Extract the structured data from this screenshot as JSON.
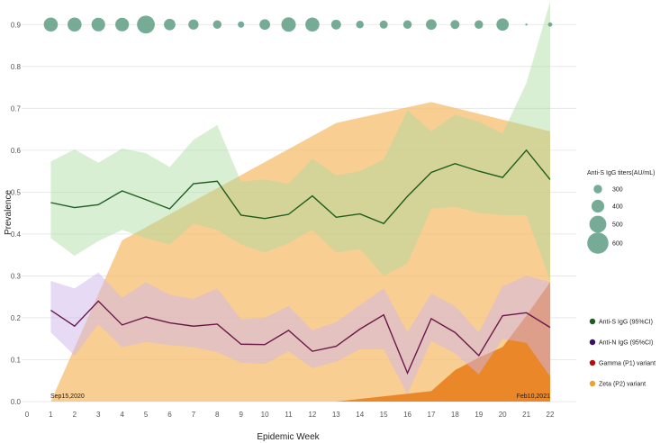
{
  "chart_data": {
    "type": "line",
    "xlabel": "Epidemic Week",
    "ylabel": "Prevalence",
    "xlim": [
      0,
      22
    ],
    "ylim": [
      0,
      0.95
    ],
    "x_ticks": [
      0,
      1,
      2,
      3,
      4,
      5,
      6,
      7,
      8,
      9,
      10,
      11,
      12,
      13,
      14,
      15,
      16,
      17,
      18,
      19,
      20,
      21,
      22
    ],
    "y_ticks": [
      0.0,
      0.1,
      0.2,
      0.3,
      0.4,
      0.5,
      0.6,
      0.7,
      0.8,
      0.9
    ],
    "y_tick_labels": [
      "0.0",
      "0.1",
      "0.2",
      "0.3",
      "0.4",
      "0.5",
      "0.6",
      "0.7",
      "0.8",
      "0.9"
    ],
    "grid": "horizontal",
    "annotations": [
      {
        "text": "Sep15,2020",
        "x": 1,
        "y": 0.0
      },
      {
        "text": "Feb10,2021",
        "x": 22,
        "y": 0.0
      }
    ],
    "series": [
      {
        "name": "Anti-S IgG (95%CI)",
        "color": "#1e5c1e",
        "band_color": "#a8dba0",
        "x": [
          1,
          2,
          3,
          4,
          5,
          6,
          7,
          8,
          9,
          10,
          11,
          12,
          13,
          14,
          15,
          16,
          17,
          18,
          19,
          20,
          21,
          22
        ],
        "values": [
          0.475,
          0.463,
          0.47,
          0.503,
          0.482,
          0.46,
          0.52,
          0.526,
          0.445,
          0.437,
          0.447,
          0.491,
          0.44,
          0.448,
          0.425,
          0.49,
          0.547,
          0.568,
          0.55,
          0.535,
          0.6,
          0.53
        ],
        "lower": [
          0.39,
          0.348,
          0.383,
          0.41,
          0.39,
          0.375,
          0.425,
          0.41,
          0.375,
          0.356,
          0.378,
          0.41,
          0.356,
          0.364,
          0.3,
          0.33,
          0.46,
          0.465,
          0.45,
          0.445,
          0.445,
          0.29
        ],
        "upper": [
          0.573,
          0.602,
          0.57,
          0.604,
          0.593,
          0.56,
          0.625,
          0.66,
          0.525,
          0.53,
          0.52,
          0.58,
          0.54,
          0.55,
          0.578,
          0.695,
          0.645,
          0.685,
          0.668,
          0.64,
          0.76,
          0.955
        ]
      },
      {
        "name": "Anti-N IgG (95%CI)",
        "color": "#3b0f63",
        "band_color": "#cfb6ec",
        "x": [
          1,
          2,
          3,
          4,
          5,
          6,
          7,
          8,
          9,
          10,
          11,
          12,
          13,
          14,
          15,
          16,
          17,
          18,
          19,
          20,
          21,
          22
        ],
        "values": [
          0.218,
          0.18,
          0.24,
          0.183,
          0.202,
          0.188,
          0.18,
          0.185,
          0.137,
          0.136,
          0.17,
          0.12,
          0.132,
          0.173,
          0.207,
          0.068,
          0.198,
          0.165,
          0.11,
          0.205,
          0.212,
          0.177
        ],
        "lower": [
          0.165,
          0.11,
          0.185,
          0.13,
          0.142,
          0.135,
          0.13,
          0.118,
          0.093,
          0.09,
          0.12,
          0.08,
          0.095,
          0.125,
          0.125,
          0.018,
          0.145,
          0.115,
          0.065,
          0.15,
          0.14,
          0.06
        ],
        "upper": [
          0.288,
          0.27,
          0.308,
          0.248,
          0.285,
          0.255,
          0.245,
          0.27,
          0.196,
          0.2,
          0.228,
          0.17,
          0.19,
          0.23,
          0.27,
          0.165,
          0.258,
          0.228,
          0.165,
          0.275,
          0.3,
          0.285
        ]
      },
      {
        "name": "Gamma (P1) variant",
        "color": "#b30d0d",
        "band_color": "#e8801e",
        "x": [
          13,
          17,
          18,
          19,
          20,
          21,
          22
        ],
        "values": [
          0.0,
          0.025,
          0.075,
          0.105,
          0.13,
          0.205,
          0.285
        ],
        "lower": [
          0.0,
          0.0,
          0.0,
          0.0,
          0.0,
          0.0,
          0.0
        ],
        "upper": [
          0.0,
          0.025,
          0.075,
          0.105,
          0.13,
          0.205,
          0.285
        ]
      },
      {
        "name": "Zeta (P2) variant",
        "color": "#f0a030",
        "band_color": "#f5bd6e",
        "x": [
          1,
          4,
          13,
          17,
          22
        ],
        "values": [
          0.0,
          0.385,
          0.665,
          0.715,
          0.645
        ],
        "lower": [
          0.0,
          0.0,
          0.0,
          0.0,
          0.0
        ],
        "upper": [
          0.0,
          0.385,
          0.665,
          0.715,
          0.645
        ]
      }
    ],
    "bubbles": {
      "title": "Anti-S IgG titers(AU/mL)",
      "color": "#5e9e84",
      "y": 0.9,
      "x": [
        1,
        2,
        3,
        4,
        5,
        6,
        7,
        8,
        9,
        10,
        11,
        12,
        13,
        14,
        15,
        16,
        17,
        18,
        19,
        20,
        21,
        22
      ],
      "titers": [
        430,
        430,
        420,
        420,
        520,
        370,
        340,
        300,
        250,
        350,
        440,
        430,
        330,
        280,
        290,
        300,
        350,
        310,
        300,
        390,
        150,
        200
      ],
      "legend_values": [
        300,
        400,
        500,
        600
      ]
    }
  }
}
